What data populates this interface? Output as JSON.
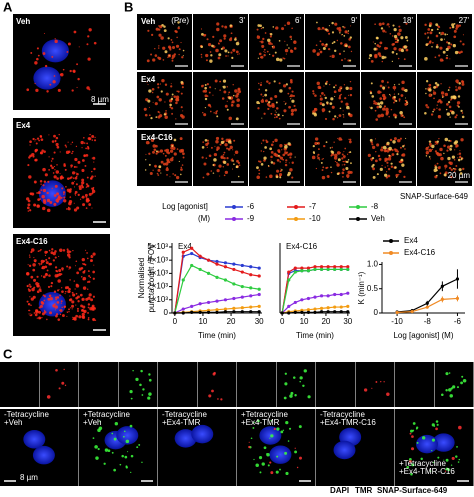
{
  "panels": {
    "A": {
      "label": "A",
      "images": [
        "Veh",
        "Ex4",
        "Ex4-C16"
      ],
      "scale_bar": "8 µm",
      "channels": [
        "DAPI",
        "SNAP-Surface-649"
      ]
    },
    "B": {
      "label": "B",
      "rows": [
        "Veh",
        "Ex4",
        "Ex4-C16"
      ],
      "times": [
        "(Pre)",
        "3'",
        "6'",
        "9'",
        "18'",
        "27'"
      ],
      "scale_bar": "20 µm",
      "channel": "SNAP-Surface-649"
    },
    "C": {
      "label": "C",
      "conditions": [
        [
          "-Tetracycline",
          "+Veh"
        ],
        [
          "+Tetracycline",
          "+Veh"
        ],
        [
          "-Tetracycline",
          "+Ex4-TMR"
        ],
        [
          "+Tetracycline",
          "+Ex4-TMR"
        ],
        [
          "-Tetracycline",
          "+Ex4-TMR-C16"
        ],
        [
          "+Tetracycline",
          "+Ex4-TMR-C16"
        ]
      ],
      "scale_bar": "8 µm",
      "channels": [
        "DAPI",
        "TMR",
        "SNAP-Surface-649"
      ]
    }
  },
  "legend": {
    "title": "Log [agonist]",
    "unit": "(M)"
  },
  "chart_data": [
    {
      "type": "line",
      "title": "Ex4",
      "ylabel_lines": [
        "Normalised",
        "puncta count / FOV"
      ],
      "xlabel": "Time (min)",
      "x": [
        0,
        3,
        6,
        9,
        12,
        15,
        18,
        21,
        24,
        27,
        30
      ],
      "xlim": [
        -1,
        31
      ],
      "xticks": [
        0,
        10,
        20,
        30
      ],
      "ylim": [
        0,
        5300
      ],
      "yticks": [
        0,
        {
          "value": 1000,
          "label": "1×10³"
        },
        {
          "value": 2000,
          "label": "2×10³"
        },
        {
          "value": 3000,
          "label": "3×10³"
        },
        {
          "value": 4000,
          "label": "4×10³"
        },
        {
          "value": 5000,
          "label": "5×10³"
        }
      ],
      "series": [
        {
          "name": "-6",
          "color": "#2b3bd1",
          "values": [
            0,
            4300,
            4500,
            4200,
            4000,
            3900,
            3800,
            3700,
            3600,
            3500,
            3400
          ]
        },
        {
          "name": "-7",
          "color": "#e41a1c",
          "values": [
            0,
            4600,
            4900,
            4300,
            4000,
            3700,
            3500,
            3300,
            3100,
            2900,
            2800
          ]
        },
        {
          "name": "-8",
          "color": "#2ecc40",
          "values": [
            0,
            2500,
            3600,
            3300,
            3000,
            2700,
            2500,
            2200,
            2000,
            1900,
            1800
          ]
        },
        {
          "name": "-9",
          "color": "#8a2be2",
          "values": [
            0,
            300,
            500,
            700,
            800,
            900,
            1000,
            1100,
            1200,
            1300,
            1400
          ]
        },
        {
          "name": "-10",
          "color": "#f39c12",
          "values": [
            0,
            50,
            100,
            150,
            200,
            250,
            300,
            350,
            400,
            450,
            500
          ]
        },
        {
          "name": "Veh",
          "color": "#000000",
          "values": [
            0,
            0,
            50,
            50,
            50,
            50,
            100,
            100,
            100,
            100,
            100
          ]
        }
      ]
    },
    {
      "type": "line",
      "title": "Ex4-C16",
      "xlabel": "Time (min)",
      "x": [
        0,
        3,
        6,
        9,
        12,
        15,
        18,
        21,
        24,
        27,
        30
      ],
      "xlim": [
        -1,
        31
      ],
      "xticks": [
        0,
        10,
        20,
        30
      ],
      "ylim": [
        0,
        5300
      ],
      "series": [
        {
          "values": [
            0,
            3000,
            3200,
            3200,
            3200,
            3300,
            3300,
            3300,
            3300,
            3300,
            3300
          ]
        },
        {
          "values": [
            0,
            3100,
            3400,
            3400,
            3400,
            3500,
            3500,
            3500,
            3500,
            3500,
            3500
          ]
        },
        {
          "values": [
            0,
            2500,
            3100,
            3200,
            3200,
            3300,
            3300,
            3300,
            3300,
            3300,
            3300
          ]
        },
        {
          "values": [
            0,
            500,
            800,
            1000,
            1100,
            1200,
            1300,
            1300,
            1400,
            1400,
            1500
          ]
        },
        {
          "values": [
            0,
            100,
            150,
            200,
            250,
            300,
            350,
            400,
            450,
            450,
            500
          ]
        },
        {
          "values": [
            0,
            0,
            50,
            50,
            50,
            50,
            100,
            100,
            100,
            100,
            100
          ]
        }
      ]
    },
    {
      "type": "line",
      "ylabel": "K (min⁻¹)",
      "xlabel": "Log [agonist] (M)",
      "x": [
        -10,
        -9,
        -8,
        -7,
        -6
      ],
      "xlim": [
        -11,
        -5.5
      ],
      "xticks": [
        -10,
        -8,
        -6
      ],
      "ylim": [
        0,
        1.05
      ],
      "yticks": [
        0,
        0.5,
        {
          "value": 1,
          "label": "1.0"
        }
      ],
      "series": [
        {
          "name": "Ex4",
          "color": "#000000",
          "values": [
            0.02,
            0.05,
            0.2,
            0.55,
            0.7
          ],
          "errors": [
            0.01,
            0.02,
            0.05,
            0.1,
            0.2
          ]
        },
        {
          "name": "Ex4-C16",
          "color": "#f08a24",
          "values": [
            0.01,
            0.03,
            0.12,
            0.28,
            0.3
          ],
          "errors": [
            0.01,
            0.01,
            0.03,
            0.06,
            0.06
          ]
        }
      ]
    }
  ]
}
